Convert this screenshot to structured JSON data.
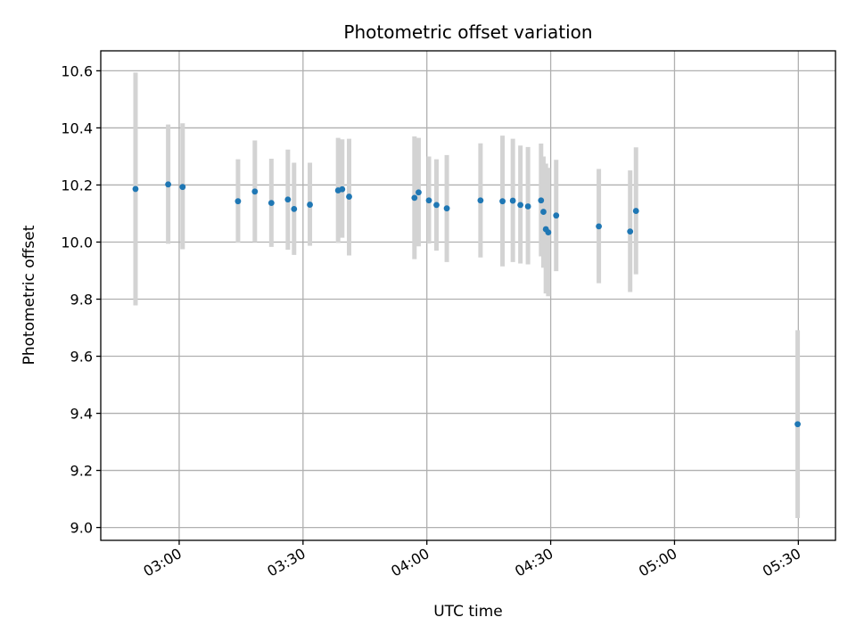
{
  "chart_data": {
    "type": "scatter",
    "title": "Photometric offset variation",
    "xlabel": "UTC time",
    "ylabel": "Photometric offset",
    "ylim": [
      8.955,
      10.67
    ],
    "xlim": [
      "02:41:00",
      "05:39:00"
    ],
    "grid": true,
    "x_ticks": [
      "03:00",
      "03:30",
      "04:00",
      "04:30",
      "05:00",
      "05:30"
    ],
    "y_ticks": [
      "9.0",
      "9.2",
      "9.4",
      "9.6",
      "9.8",
      "10.0",
      "10.2",
      "10.4",
      "10.6"
    ],
    "colors": {
      "point": "#1f77b4",
      "errorbar": "#d3d3d3",
      "grid": "#b0b0b0"
    },
    "points": [
      {
        "t": "02:49:25",
        "y": 10.186,
        "lo": 9.778,
        "hi": 10.594
      },
      {
        "t": "02:57:20",
        "y": 10.202,
        "lo": 9.994,
        "hi": 10.412
      },
      {
        "t": "03:00:50",
        "y": 10.193,
        "lo": 9.975,
        "hi": 10.416
      },
      {
        "t": "03:14:15",
        "y": 10.143,
        "lo": 9.998,
        "hi": 10.29
      },
      {
        "t": "03:18:20",
        "y": 10.177,
        "lo": 10.0,
        "hi": 10.356
      },
      {
        "t": "03:22:20",
        "y": 10.137,
        "lo": 9.983,
        "hi": 10.292
      },
      {
        "t": "03:26:20",
        "y": 10.149,
        "lo": 9.973,
        "hi": 10.324
      },
      {
        "t": "03:27:50",
        "y": 10.116,
        "lo": 9.955,
        "hi": 10.278
      },
      {
        "t": "03:31:40",
        "y": 10.131,
        "lo": 9.987,
        "hi": 10.278
      },
      {
        "t": "03:38:30",
        "y": 10.181,
        "lo": 9.997,
        "hi": 10.365
      },
      {
        "t": "03:39:30",
        "y": 10.185,
        "lo": 10.015,
        "hi": 10.36
      },
      {
        "t": "03:41:10",
        "y": 10.159,
        "lo": 9.953,
        "hi": 10.362
      },
      {
        "t": "03:57:00",
        "y": 10.155,
        "lo": 9.94,
        "hi": 10.37
      },
      {
        "t": "03:58:00",
        "y": 10.174,
        "lo": 9.985,
        "hi": 10.365
      },
      {
        "t": "04:00:30",
        "y": 10.146,
        "lo": 9.995,
        "hi": 10.3
      },
      {
        "t": "04:02:20",
        "y": 10.13,
        "lo": 9.97,
        "hi": 10.29
      },
      {
        "t": "04:04:50",
        "y": 10.118,
        "lo": 9.93,
        "hi": 10.305
      },
      {
        "t": "04:13:00",
        "y": 10.146,
        "lo": 9.946,
        "hi": 10.346
      },
      {
        "t": "04:18:20",
        "y": 10.143,
        "lo": 9.915,
        "hi": 10.373
      },
      {
        "t": "04:20:50",
        "y": 10.145,
        "lo": 9.93,
        "hi": 10.362
      },
      {
        "t": "04:22:40",
        "y": 10.13,
        "lo": 9.925,
        "hi": 10.338
      },
      {
        "t": "04:24:30",
        "y": 10.125,
        "lo": 9.922,
        "hi": 10.333
      },
      {
        "t": "04:27:40",
        "y": 10.146,
        "lo": 9.95,
        "hi": 10.345
      },
      {
        "t": "04:28:15",
        "y": 10.106,
        "lo": 9.91,
        "hi": 10.3
      },
      {
        "t": "04:28:50",
        "y": 10.045,
        "lo": 9.82,
        "hi": 10.275
      },
      {
        "t": "04:29:25",
        "y": 10.034,
        "lo": 9.81,
        "hi": 10.26
      },
      {
        "t": "04:31:20",
        "y": 10.093,
        "lo": 9.898,
        "hi": 10.288
      },
      {
        "t": "04:41:40",
        "y": 10.055,
        "lo": 9.856,
        "hi": 10.256
      },
      {
        "t": "04:49:15",
        "y": 10.037,
        "lo": 9.825,
        "hi": 10.251
      },
      {
        "t": "04:50:40",
        "y": 10.109,
        "lo": 9.887,
        "hi": 10.332
      },
      {
        "t": "05:29:50",
        "y": 9.362,
        "lo": 9.033,
        "hi": 9.691
      }
    ]
  }
}
